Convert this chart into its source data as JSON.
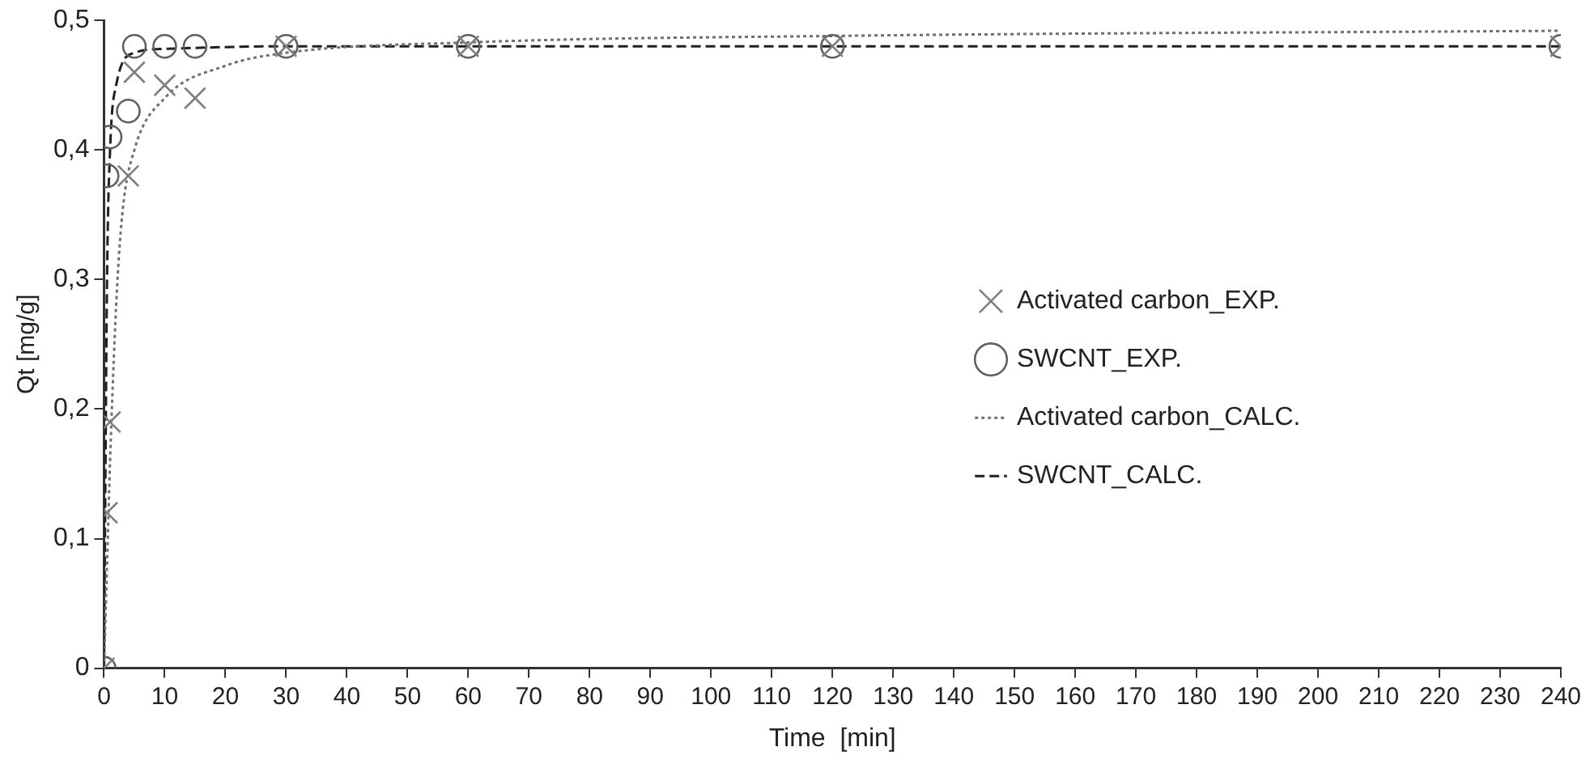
{
  "chart_data": {
    "type": "scatter",
    "xlabel": "Time  [min]",
    "ylabel": "Qt [mg/g]",
    "xlim": [
      0,
      240
    ],
    "xticks": [
      0,
      10,
      20,
      30,
      40,
      50,
      60,
      70,
      80,
      90,
      100,
      110,
      120,
      130,
      140,
      150,
      160,
      170,
      180,
      190,
      200,
      210,
      220,
      230,
      240
    ],
    "ylim": [
      0,
      0.5
    ],
    "yticks": [
      0,
      {
        "value": 0.1,
        "label": "0,1"
      },
      {
        "value": 0.2,
        "label": "0,2"
      },
      {
        "value": 0.3,
        "label": "0,3"
      },
      {
        "value": 0.4,
        "label": "0,4"
      },
      {
        "value": 0.5,
        "label": "0,5"
      }
    ],
    "grid": false,
    "legend": "right",
    "series": [
      {
        "name": "Activated carbon_EXP.",
        "type": "scatter",
        "marker": "cross",
        "color": "#7f7f7f",
        "x": [
          0,
          0.5,
          1,
          4,
          5,
          10,
          15,
          30,
          60,
          120,
          240
        ],
        "values": [
          0,
          0.12,
          0.19,
          0.38,
          0.46,
          0.45,
          0.44,
          0.48,
          0.48,
          0.48,
          0.48
        ]
      },
      {
        "name": "SWCNT_EXP.",
        "type": "scatter",
        "marker": "circle",
        "color": "#606060",
        "x": [
          0,
          0.5,
          1,
          4,
          5,
          10,
          15,
          30,
          60,
          120,
          240
        ],
        "values": [
          0,
          0.38,
          0.41,
          0.43,
          0.48,
          0.48,
          0.48,
          0.48,
          0.48,
          0.48,
          0.48
        ]
      },
      {
        "name": "Activated carbon_CALC.",
        "type": "line",
        "line_style": "dotted",
        "color": "#707070",
        "x": [
          0,
          0.5,
          1,
          2,
          3,
          5,
          10,
          20,
          30,
          60,
          120,
          240
        ],
        "values": [
          0,
          0.08,
          0.16,
          0.28,
          0.35,
          0.4,
          0.44,
          0.465,
          0.475,
          0.483,
          0.488,
          0.492
        ]
      },
      {
        "name": "SWCNT_CALC.",
        "type": "line",
        "line_style": "dashed",
        "color": "#202020",
        "x": [
          0,
          0.5,
          1,
          2,
          5,
          10,
          30,
          60,
          120,
          240
        ],
        "values": [
          0,
          0.3,
          0.4,
          0.45,
          0.475,
          0.478,
          0.48,
          0.48,
          0.48,
          0.48
        ]
      }
    ]
  }
}
